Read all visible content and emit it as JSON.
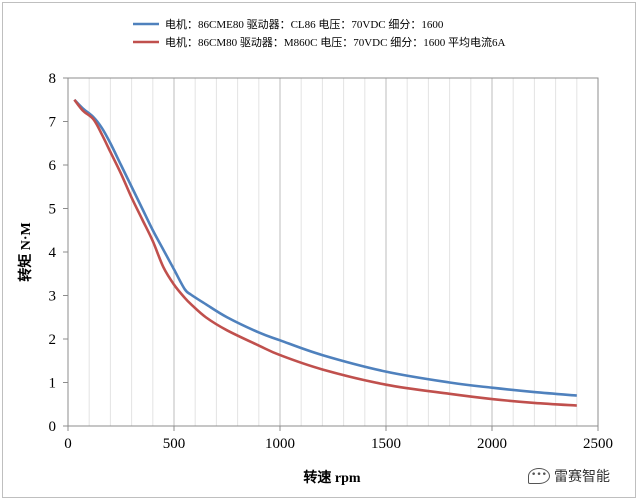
{
  "chart_data": {
    "type": "line",
    "xlabel": "转速 rpm",
    "ylabel": "转矩 N·M",
    "xlim": [
      0,
      2500
    ],
    "ylim": [
      0,
      8
    ],
    "xticks": [
      "0",
      "500",
      "1000",
      "1500",
      "2000",
      "2500"
    ],
    "yticks": [
      "0",
      "1",
      "2",
      "3",
      "4",
      "5",
      "6",
      "7",
      "8"
    ],
    "grid": "vertical",
    "legend_position": "top-center",
    "series": [
      {
        "name": "电机：86CME80 驱动器：CL86 电压：70VDC 细分：1600",
        "color": "#4f81bd",
        "x": [
          30,
          70,
          120,
          160,
          200,
          250,
          300,
          350,
          400,
          450,
          500,
          550,
          580,
          650,
          750,
          900,
          1000,
          1200,
          1500,
          1800,
          2000,
          2200,
          2400
        ],
        "y": [
          7.5,
          7.3,
          7.1,
          6.85,
          6.5,
          6.0,
          5.5,
          5.0,
          4.5,
          4.05,
          3.6,
          3.15,
          3.02,
          2.8,
          2.5,
          2.15,
          1.97,
          1.63,
          1.25,
          1.0,
          0.88,
          0.78,
          0.7
        ]
      },
      {
        "name": "电机：86CM80 驱动器：M860C 电压：70VDC 细分：1600 平均电流6A",
        "color": "#c0504d",
        "x": [
          30,
          70,
          120,
          160,
          200,
          250,
          300,
          350,
          400,
          450,
          500,
          550,
          580,
          650,
          750,
          900,
          1000,
          1200,
          1500,
          1800,
          2000,
          2200,
          2400
        ],
        "y": [
          7.5,
          7.25,
          7.05,
          6.7,
          6.3,
          5.8,
          5.25,
          4.75,
          4.25,
          3.65,
          3.25,
          2.95,
          2.8,
          2.5,
          2.2,
          1.85,
          1.63,
          1.3,
          0.95,
          0.74,
          0.62,
          0.53,
          0.47
        ]
      }
    ]
  },
  "watermark": {
    "icon": "wechat-bubble-icon",
    "text": "雷赛智能"
  }
}
